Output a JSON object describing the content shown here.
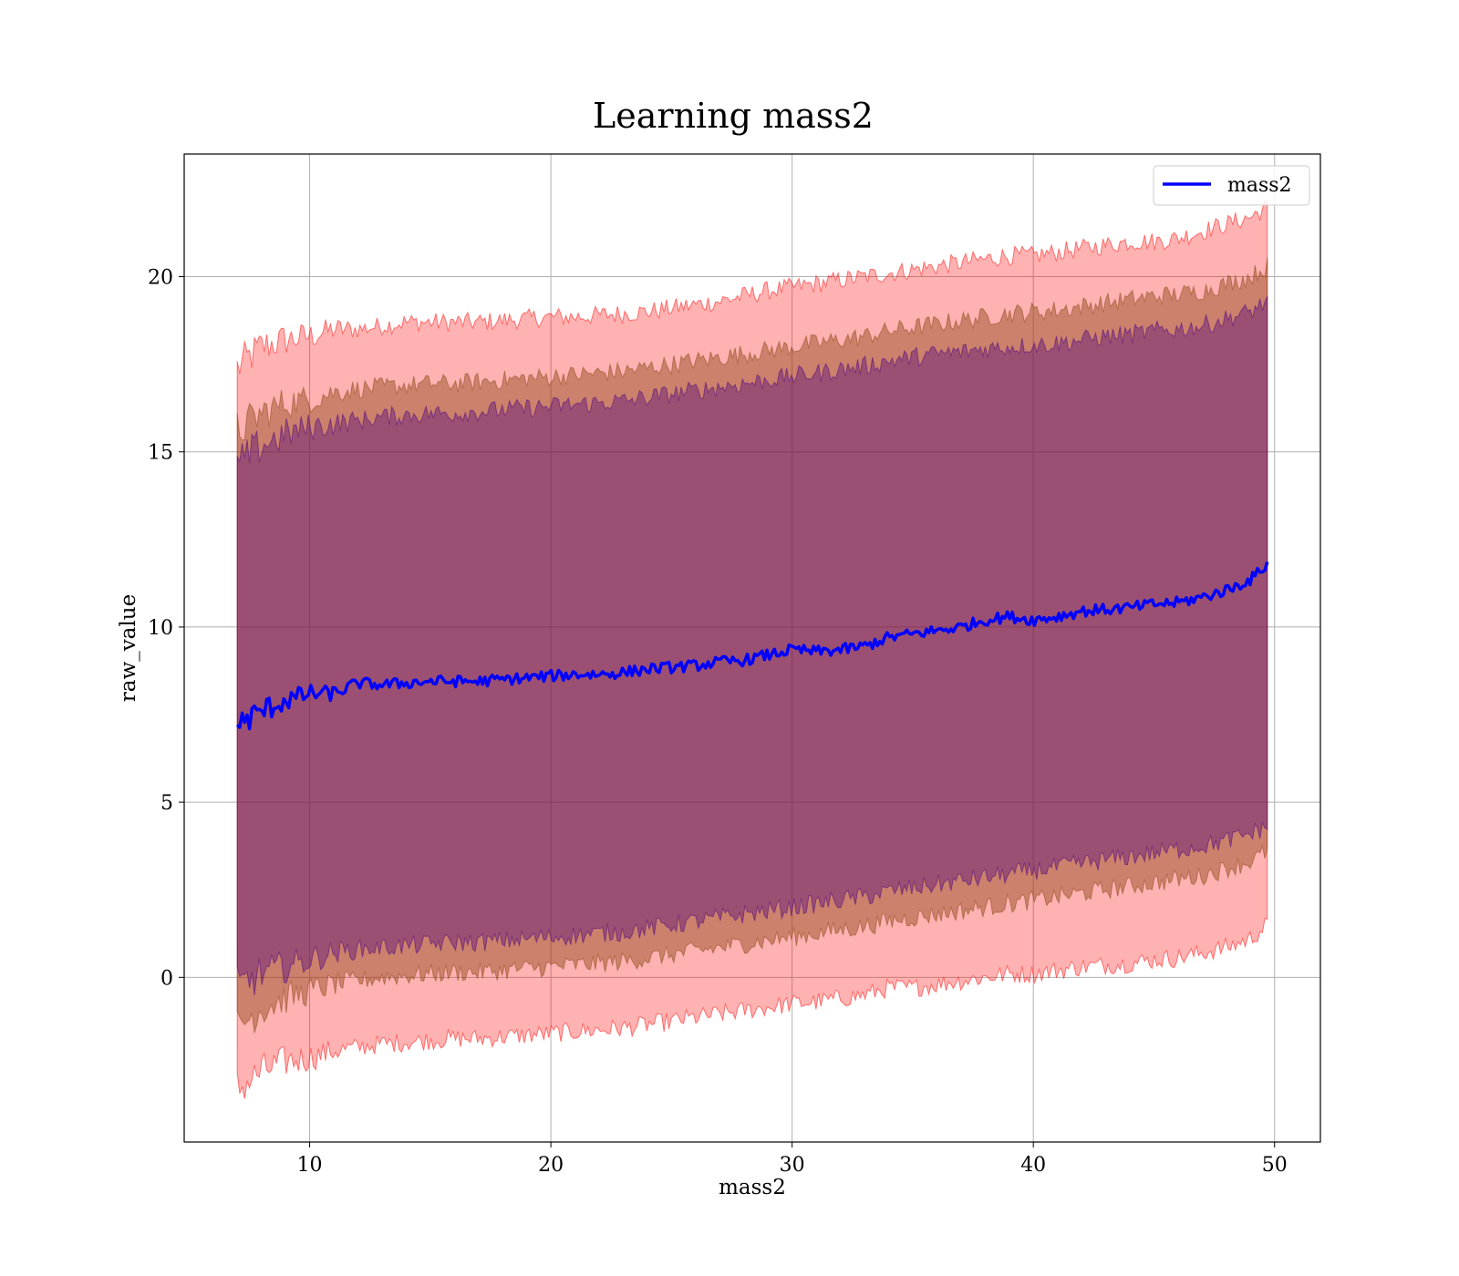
{
  "chart_data": {
    "type": "line",
    "title": "Learning mass2",
    "xlabel": "mass2",
    "ylabel": "raw_value",
    "xlim": [
      4.8,
      51.9
    ],
    "ylim": [
      -4.7,
      23.5
    ],
    "xticks": [
      10,
      20,
      30,
      40,
      50
    ],
    "yticks": [
      0,
      5,
      10,
      15,
      20
    ],
    "grid": true,
    "legend_position": "top-right",
    "colors": {
      "line": "#0000ff",
      "band_outer": "#ff0000",
      "band_middle": "#8b4513",
      "band_inner": "#4b0082",
      "grid": "#b0b0b0"
    },
    "series": [
      {
        "name": "mass2",
        "x": [
          7.0,
          8.0,
          9.0,
          10.0,
          11.0,
          12.0,
          13.0,
          14.0,
          15.0,
          16.0,
          17.0,
          18.0,
          19.0,
          20.0,
          21.0,
          22.0,
          23.0,
          24.0,
          25.0,
          26.0,
          27.0,
          28.0,
          29.0,
          30.0,
          31.0,
          32.0,
          33.0,
          34.0,
          35.0,
          36.0,
          37.0,
          38.0,
          39.0,
          40.0,
          41.0,
          42.0,
          43.0,
          44.0,
          45.0,
          46.0,
          47.0,
          48.0,
          49.0,
          49.7
        ],
        "mean": [
          7.2,
          7.6,
          7.9,
          8.1,
          8.1,
          8.4,
          8.35,
          8.4,
          8.45,
          8.45,
          8.45,
          8.5,
          8.55,
          8.6,
          8.65,
          8.65,
          8.7,
          8.8,
          8.85,
          8.9,
          9.0,
          9.05,
          9.2,
          9.35,
          9.3,
          9.35,
          9.45,
          9.7,
          9.8,
          9.9,
          10.0,
          10.2,
          10.3,
          10.2,
          10.3,
          10.45,
          10.5,
          10.55,
          10.65,
          10.7,
          10.85,
          11.05,
          11.35,
          11.8
        ],
        "band_outer": {
          "upper": [
            17.4,
            18.0,
            18.2,
            18.3,
            18.5,
            18.5,
            18.6,
            18.7,
            18.7,
            18.7,
            18.7,
            18.75,
            18.8,
            18.85,
            18.85,
            18.9,
            18.95,
            19.0,
            19.1,
            19.2,
            19.3,
            19.45,
            19.6,
            19.7,
            19.8,
            19.9,
            20.0,
            20.1,
            20.2,
            20.3,
            20.4,
            20.5,
            20.6,
            20.6,
            20.7,
            20.8,
            20.9,
            21.0,
            21.0,
            21.1,
            21.3,
            21.5,
            21.7,
            22.0
          ],
          "lower": [
            -3.2,
            -2.7,
            -2.4,
            -2.3,
            -2.1,
            -2.0,
            -1.9,
            -1.85,
            -1.8,
            -1.75,
            -1.75,
            -1.7,
            -1.65,
            -1.6,
            -1.55,
            -1.5,
            -1.45,
            -1.35,
            -1.25,
            -1.15,
            -1.05,
            -0.95,
            -0.85,
            -0.75,
            -0.7,
            -0.6,
            -0.5,
            -0.3,
            -0.3,
            -0.2,
            -0.1,
            0.0,
            0.1,
            0.1,
            0.2,
            0.3,
            0.35,
            0.4,
            0.5,
            0.55,
            0.7,
            0.85,
            1.1,
            1.5
          ]
        },
        "band_middle": {
          "upper": [
            15.6,
            16.1,
            16.4,
            16.5,
            16.7,
            16.8,
            16.85,
            16.9,
            16.95,
            16.95,
            17.0,
            17.05,
            17.1,
            17.15,
            17.2,
            17.25,
            17.3,
            17.4,
            17.5,
            17.6,
            17.7,
            17.8,
            17.9,
            18.0,
            18.1,
            18.2,
            18.3,
            18.45,
            18.55,
            18.65,
            18.75,
            18.85,
            18.95,
            19.0,
            19.05,
            19.15,
            19.25,
            19.35,
            19.45,
            19.5,
            19.6,
            19.8,
            20.0,
            20.3
          ],
          "lower": [
            -1.4,
            -0.9,
            -0.6,
            -0.4,
            -0.2,
            -0.1,
            0.0,
            0.05,
            0.1,
            0.15,
            0.15,
            0.2,
            0.25,
            0.3,
            0.35,
            0.4,
            0.45,
            0.55,
            0.65,
            0.75,
            0.85,
            0.95,
            1.05,
            1.15,
            1.25,
            1.35,
            1.45,
            1.6,
            1.7,
            1.8,
            1.9,
            2.0,
            2.1,
            2.2,
            2.3,
            2.4,
            2.5,
            2.6,
            2.7,
            2.8,
            2.9,
            3.1,
            3.3,
            3.6
          ]
        },
        "band_inner": {
          "upper": [
            14.6,
            15.2,
            15.5,
            15.7,
            15.8,
            15.9,
            16.0,
            16.05,
            16.1,
            16.1,
            16.15,
            16.2,
            16.25,
            16.3,
            16.35,
            16.4,
            16.45,
            16.55,
            16.65,
            16.75,
            16.85,
            16.95,
            17.05,
            17.15,
            17.25,
            17.35,
            17.45,
            17.6,
            17.7,
            17.8,
            17.85,
            17.95,
            18.0,
            18.05,
            18.1,
            18.2,
            18.3,
            18.35,
            18.45,
            18.5,
            18.6,
            18.8,
            19.0,
            19.3
          ],
          "lower": [
            -0.3,
            0.1,
            0.3,
            0.5,
            0.7,
            0.8,
            0.85,
            0.9,
            0.95,
            1.0,
            1.0,
            1.05,
            1.1,
            1.15,
            1.2,
            1.25,
            1.3,
            1.4,
            1.5,
            1.6,
            1.7,
            1.8,
            1.9,
            2.0,
            2.1,
            2.2,
            2.3,
            2.45,
            2.55,
            2.65,
            2.75,
            2.85,
            2.95,
            3.05,
            3.15,
            3.25,
            3.35,
            3.45,
            3.55,
            3.65,
            3.75,
            3.9,
            4.1,
            4.3
          ]
        }
      }
    ]
  }
}
